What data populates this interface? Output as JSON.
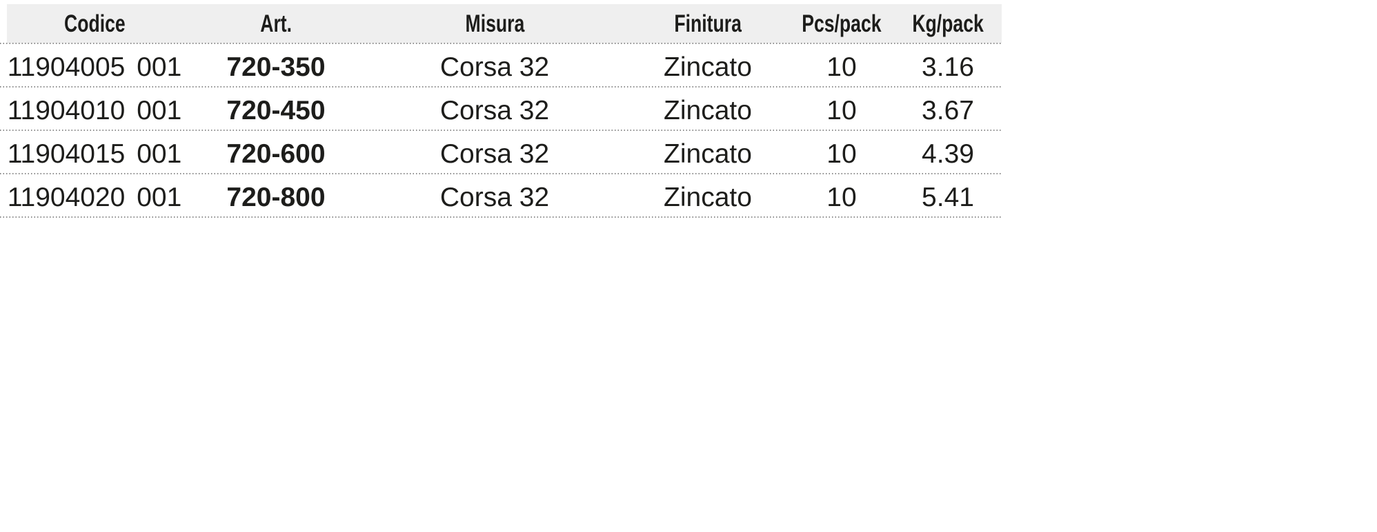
{
  "table": {
    "headers": {
      "codice": "Codice",
      "art": "Art.",
      "misura": "Misura",
      "finitura": "Finitura",
      "pcs_pack": "Pcs/pack",
      "kg_pack": "Kg/pack"
    },
    "rows": [
      {
        "codice": "11904005 001",
        "art": "720-350",
        "misura": "Corsa 32",
        "finitura": "Zincato",
        "pcs_pack": "10",
        "kg_pack": "3.16"
      },
      {
        "codice": "11904010 001",
        "art": "720-450",
        "misura": "Corsa 32",
        "finitura": "Zincato",
        "pcs_pack": "10",
        "kg_pack": "3.67"
      },
      {
        "codice": "11904015 001",
        "art": "720-600",
        "misura": "Corsa 32",
        "finitura": "Zincato",
        "pcs_pack": "10",
        "kg_pack": "4.39"
      },
      {
        "codice": "11904020 001",
        "art": "720-800",
        "misura": "Corsa 32",
        "finitura": "Zincato",
        "pcs_pack": "10",
        "kg_pack": "5.41"
      }
    ],
    "colors": {
      "header_bg": "#efefef",
      "text": "#1d1d1b",
      "dotted_line": "#8c8c8c"
    }
  }
}
